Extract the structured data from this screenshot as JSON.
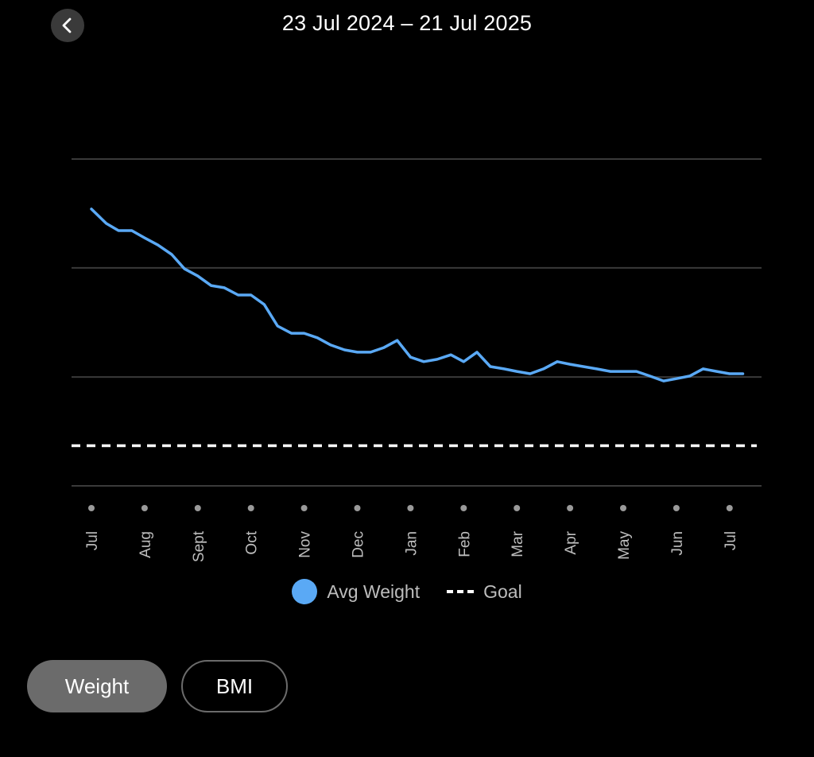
{
  "header": {
    "title": "23 Jul 2024 – 21 Jul 2025"
  },
  "colors": {
    "avg_weight": "#5aa9f5",
    "goal": "#ffffff",
    "grid": "#3a3a3a",
    "background": "#000000"
  },
  "legend": {
    "avg_weight": "Avg Weight",
    "goal": "Goal"
  },
  "tabs": {
    "weight": "Weight",
    "bmi": "BMI"
  },
  "chart_data": {
    "type": "line",
    "title": "",
    "xlabel": "",
    "ylabel": "",
    "ylim": [
      0,
      100
    ],
    "x_ticks": [
      "Jul",
      "Aug",
      "Sept",
      "Oct",
      "Nov",
      "Dec",
      "Jan",
      "Feb",
      "Mar",
      "Apr",
      "May",
      "Jun",
      "Jul"
    ],
    "gridlines_y": [
      100,
      66.7,
      33.3,
      0
    ],
    "goal": 12.3,
    "series": [
      {
        "name": "Avg Weight",
        "x": [
          0,
          0.28,
          0.51,
          0.76,
          1.0,
          1.25,
          1.51,
          1.75,
          2.0,
          2.25,
          2.5,
          2.76,
          3.0,
          3.25,
          3.5,
          3.76,
          4.0,
          4.25,
          4.5,
          4.76,
          5.0,
          5.25,
          5.5,
          5.75,
          6.0,
          6.25,
          6.5,
          6.76,
          7.0,
          7.25,
          7.5,
          7.76,
          8.0,
          8.25,
          8.5,
          8.76,
          9.0,
          9.25,
          9.5,
          9.76,
          10.0,
          10.25,
          10.5,
          10.76,
          11.0,
          11.25,
          11.5,
          11.76,
          12.0,
          12.25
        ],
        "values": [
          84.7,
          80.3,
          78.1,
          78.1,
          75.9,
          73.7,
          70.8,
          66.4,
          64.2,
          61.3,
          60.6,
          58.4,
          58.4,
          55.5,
          48.9,
          46.7,
          46.7,
          45.3,
          43.1,
          41.6,
          40.9,
          40.9,
          42.3,
          44.5,
          39.4,
          38.0,
          38.7,
          40.1,
          38.0,
          40.9,
          36.5,
          35.8,
          35.0,
          34.3,
          35.8,
          38.0,
          37.2,
          36.5,
          35.8,
          35.0,
          35.0,
          35.0,
          33.6,
          32.1,
          32.8,
          33.6,
          35.8,
          35.0,
          34.3,
          34.3
        ]
      }
    ]
  }
}
